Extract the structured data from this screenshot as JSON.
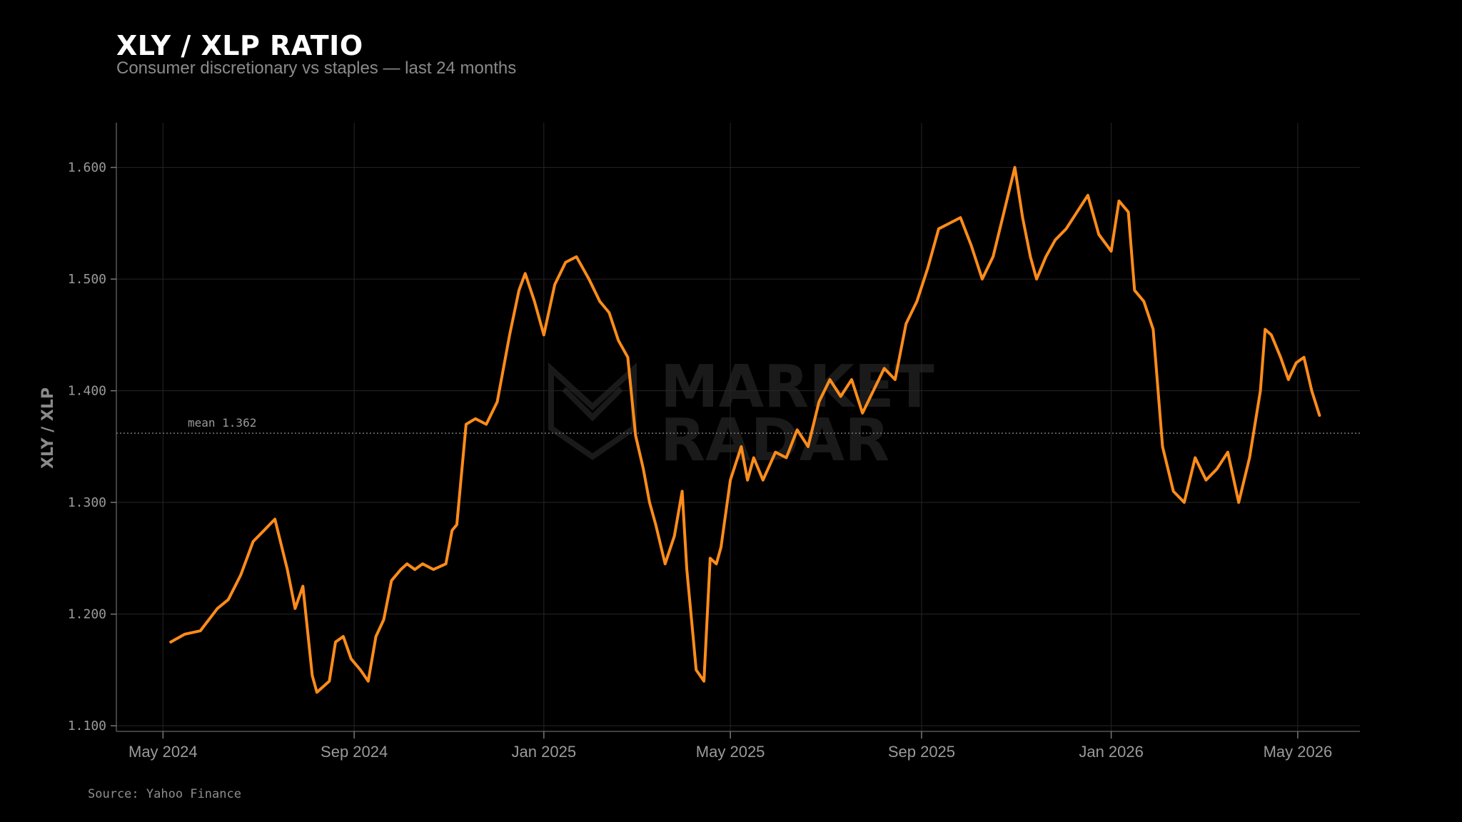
{
  "header": {
    "title": "XLY / XLP RATIO",
    "subtitle": "Consumer discretionary vs staples — last 24 months"
  },
  "footer": {
    "source": "Source: Yahoo Finance"
  },
  "watermark": {
    "line1": "MARKET",
    "line2": "RADAR"
  },
  "colors": {
    "background": "#000000",
    "line": "#ff8c1a",
    "grid": "#262626",
    "mean": "#777777"
  },
  "chart_data": {
    "type": "line",
    "title": "XLY / XLP RATIO",
    "subtitle": "Consumer discretionary vs staples — last 24 months",
    "ylabel": "XLY / XLP",
    "ylim": [
      1.095,
      1.64
    ],
    "xlim": [
      "2024-04-01",
      "2026-06-10"
    ],
    "grid": true,
    "y_ticks": [
      "1.100",
      "1.200",
      "1.300",
      "1.400",
      "1.500",
      "1.600"
    ],
    "x_ticks": [
      {
        "date": "2024-05-01",
        "label": "May 2024"
      },
      {
        "date": "2024-09-01",
        "label": "Sep 2024"
      },
      {
        "date": "2025-01-01",
        "label": "Jan 2025"
      },
      {
        "date": "2025-05-01",
        "label": "May 2025"
      },
      {
        "date": "2025-09-01",
        "label": "Sep 2025"
      },
      {
        "date": "2026-01-01",
        "label": "Jan 2026"
      },
      {
        "date": "2026-05-01",
        "label": "May 2026"
      }
    ],
    "mean": {
      "value": 1.362,
      "label": "mean 1.362"
    },
    "series": [
      {
        "x": [
          "2024-05-06",
          "2024-05-15",
          "2024-05-25",
          "2024-06-05",
          "2024-06-12",
          "2024-06-20",
          "2024-06-28",
          "2024-07-05",
          "2024-07-12",
          "2024-07-20",
          "2024-07-25",
          "2024-07-30",
          "2024-08-05",
          "2024-08-08",
          "2024-08-12",
          "2024-08-16",
          "2024-08-20",
          "2024-08-25",
          "2024-08-30",
          "2024-09-05",
          "2024-09-10",
          "2024-09-15",
          "2024-09-20",
          "2024-09-25",
          "2024-10-01",
          "2024-10-05",
          "2024-10-10",
          "2024-10-15",
          "2024-10-22",
          "2024-10-30",
          "2024-11-03",
          "2024-11-06",
          "2024-11-12",
          "2024-11-18",
          "2024-11-25",
          "2024-12-02",
          "2024-12-10",
          "2024-12-16",
          "2024-12-20",
          "2024-12-26",
          "2025-01-01",
          "2025-01-08",
          "2025-01-15",
          "2025-01-22",
          "2025-01-30",
          "2025-02-06",
          "2025-02-12",
          "2025-02-18",
          "2025-02-24",
          "2025-03-01",
          "2025-03-06",
          "2025-03-10",
          "2025-03-14",
          "2025-03-20",
          "2025-03-26",
          "2025-03-31",
          "2025-04-03",
          "2025-04-07",
          "2025-04-09",
          "2025-04-14",
          "2025-04-18",
          "2025-04-22",
          "2025-04-25",
          "2025-05-01",
          "2025-05-08",
          "2025-05-12",
          "2025-05-16",
          "2025-05-22",
          "2025-05-30",
          "2025-06-06",
          "2025-06-13",
          "2025-06-20",
          "2025-06-27",
          "2025-07-04",
          "2025-07-11",
          "2025-07-18",
          "2025-07-25",
          "2025-08-01",
          "2025-08-08",
          "2025-08-15",
          "2025-08-22",
          "2025-08-29",
          "2025-09-05",
          "2025-09-12",
          "2025-09-19",
          "2025-09-26",
          "2025-10-03",
          "2025-10-10",
          "2025-10-17",
          "2025-10-24",
          "2025-10-31",
          "2025-11-05",
          "2025-11-10",
          "2025-11-14",
          "2025-11-20",
          "2025-11-26",
          "2025-12-03",
          "2025-12-10",
          "2025-12-17",
          "2025-12-24",
          "2026-01-01",
          "2026-01-06",
          "2026-01-12",
          "2026-01-16",
          "2026-01-22",
          "2026-01-28",
          "2026-02-03",
          "2026-02-10",
          "2026-02-17",
          "2026-02-24",
          "2026-03-03",
          "2026-03-10",
          "2026-03-17",
          "2026-03-24",
          "2026-03-31",
          "2026-04-07",
          "2026-04-10",
          "2026-04-14",
          "2026-04-20",
          "2026-04-25",
          "2026-04-30",
          "2026-05-05",
          "2026-05-10",
          "2026-05-15"
        ],
        "values": [
          1.175,
          1.182,
          1.185,
          1.205,
          1.213,
          1.235,
          1.265,
          1.275,
          1.285,
          1.24,
          1.205,
          1.225,
          1.145,
          1.13,
          1.135,
          1.14,
          1.175,
          1.18,
          1.16,
          1.15,
          1.14,
          1.18,
          1.195,
          1.23,
          1.24,
          1.245,
          1.24,
          1.245,
          1.24,
          1.245,
          1.275,
          1.28,
          1.37,
          1.375,
          1.37,
          1.39,
          1.45,
          1.49,
          1.505,
          1.48,
          1.45,
          1.495,
          1.515,
          1.52,
          1.5,
          1.48,
          1.47,
          1.445,
          1.43,
          1.36,
          1.33,
          1.3,
          1.28,
          1.245,
          1.27,
          1.31,
          1.24,
          1.18,
          1.15,
          1.14,
          1.25,
          1.245,
          1.26,
          1.32,
          1.35,
          1.32,
          1.34,
          1.32,
          1.345,
          1.34,
          1.365,
          1.35,
          1.39,
          1.41,
          1.395,
          1.41,
          1.38,
          1.4,
          1.42,
          1.41,
          1.46,
          1.48,
          1.51,
          1.545,
          1.55,
          1.555,
          1.53,
          1.5,
          1.52,
          1.56,
          1.6,
          1.555,
          1.52,
          1.5,
          1.52,
          1.535,
          1.545,
          1.56,
          1.575,
          1.54,
          1.525,
          1.57,
          1.56,
          1.49,
          1.48,
          1.455,
          1.35,
          1.31,
          1.3,
          1.34,
          1.32,
          1.33,
          1.345,
          1.3,
          1.34,
          1.4,
          1.455,
          1.45,
          1.43,
          1.41,
          1.425,
          1.43,
          1.4,
          1.378
        ]
      }
    ]
  }
}
